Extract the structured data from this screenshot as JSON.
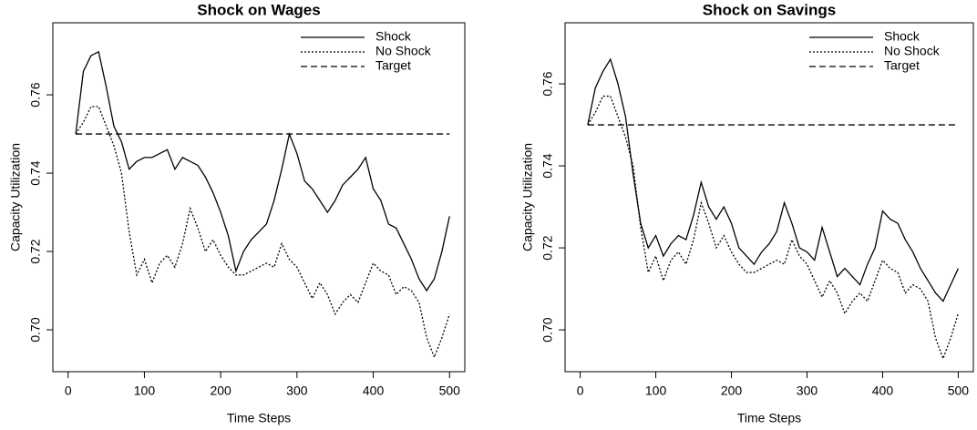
{
  "chart_data": [
    {
      "type": "line",
      "title": "Shock on Wages",
      "xlabel": "Time Steps",
      "ylabel": "Capacity Utilization",
      "x": [
        10,
        20,
        30,
        40,
        50,
        60,
        70,
        80,
        90,
        100,
        110,
        120,
        130,
        140,
        150,
        160,
        170,
        180,
        190,
        200,
        210,
        220,
        230,
        240,
        250,
        260,
        270,
        280,
        290,
        300,
        310,
        320,
        330,
        340,
        350,
        360,
        370,
        380,
        390,
        400,
        410,
        420,
        430,
        440,
        450,
        460,
        470,
        480,
        490,
        500
      ],
      "series": [
        {
          "name": "Shock",
          "color": "#000000",
          "linestyle": "solid",
          "values": [
            0.75,
            0.766,
            0.77,
            0.771,
            0.762,
            0.752,
            0.748,
            0.741,
            0.743,
            0.744,
            0.744,
            0.745,
            0.746,
            0.741,
            0.744,
            0.743,
            0.742,
            0.739,
            0.735,
            0.73,
            0.724,
            0.715,
            0.72,
            0.723,
            0.725,
            0.727,
            0.733,
            0.741,
            0.75,
            0.745,
            0.738,
            0.736,
            0.733,
            0.73,
            0.733,
            0.737,
            0.739,
            0.741,
            0.744,
            0.736,
            0.733,
            0.727,
            0.726,
            0.722,
            0.718,
            0.713,
            0.71,
            0.713,
            0.72,
            0.729
          ]
        },
        {
          "name": "No Shock",
          "color": "#000000",
          "linestyle": "dotted",
          "values": [
            0.75,
            0.753,
            0.757,
            0.757,
            0.752,
            0.747,
            0.74,
            0.725,
            0.714,
            0.718,
            0.712,
            0.717,
            0.719,
            0.716,
            0.722,
            0.731,
            0.726,
            0.72,
            0.723,
            0.719,
            0.716,
            0.714,
            0.714,
            0.715,
            0.716,
            0.717,
            0.716,
            0.722,
            0.718,
            0.716,
            0.712,
            0.708,
            0.712,
            0.709,
            0.704,
            0.707,
            0.709,
            0.707,
            0.712,
            0.717,
            0.715,
            0.714,
            0.709,
            0.711,
            0.71,
            0.707,
            0.698,
            0.693,
            0.698,
            0.704
          ]
        },
        {
          "name": "Target",
          "color": "#000000",
          "linestyle": "dashed",
          "values": [
            0.75,
            0.75,
            0.75,
            0.75,
            0.75,
            0.75,
            0.75,
            0.75,
            0.75,
            0.75,
            0.75,
            0.75,
            0.75,
            0.75,
            0.75,
            0.75,
            0.75,
            0.75,
            0.75,
            0.75,
            0.75,
            0.75,
            0.75,
            0.75,
            0.75,
            0.75,
            0.75,
            0.75,
            0.75,
            0.75,
            0.75,
            0.75,
            0.75,
            0.75,
            0.75,
            0.75,
            0.75,
            0.75,
            0.75,
            0.75,
            0.75,
            0.75,
            0.75,
            0.75,
            0.75,
            0.75,
            0.75,
            0.75,
            0.75,
            0.75
          ]
        }
      ],
      "xlim": [
        -20,
        520
      ],
      "xticks": [
        0,
        100,
        200,
        300,
        400,
        500
      ],
      "ylim": [
        0.6893,
        0.7784
      ],
      "yticks": [
        {
          "value": 0.7,
          "label": "0.70"
        },
        {
          "value": 0.72,
          "label": "0.72"
        },
        {
          "value": 0.74,
          "label": "0.74"
        },
        {
          "value": 0.76,
          "label": "0.76"
        }
      ],
      "legend": "top-right"
    },
    {
      "type": "line",
      "title": "Shock on Savings",
      "xlabel": "Time Steps",
      "ylabel": "Capacity Utilization",
      "x": [
        10,
        20,
        30,
        40,
        50,
        60,
        70,
        80,
        90,
        100,
        110,
        120,
        130,
        140,
        150,
        160,
        170,
        180,
        190,
        200,
        210,
        220,
        230,
        240,
        250,
        260,
        270,
        280,
        290,
        300,
        310,
        320,
        330,
        340,
        350,
        360,
        370,
        380,
        390,
        400,
        410,
        420,
        430,
        440,
        450,
        460,
        470,
        480,
        490,
        500
      ],
      "series": [
        {
          "name": "Shock",
          "color": "#000000",
          "linestyle": "solid",
          "values": [
            0.75,
            0.759,
            0.763,
            0.766,
            0.76,
            0.752,
            0.738,
            0.726,
            0.72,
            0.723,
            0.718,
            0.721,
            0.723,
            0.722,
            0.728,
            0.736,
            0.73,
            0.727,
            0.73,
            0.726,
            0.72,
            0.718,
            0.716,
            0.719,
            0.721,
            0.724,
            0.731,
            0.726,
            0.72,
            0.719,
            0.717,
            0.725,
            0.719,
            0.713,
            0.715,
            0.713,
            0.711,
            0.716,
            0.72,
            0.729,
            0.727,
            0.726,
            0.722,
            0.719,
            0.715,
            0.712,
            0.709,
            0.707,
            0.711,
            0.715
          ]
        },
        {
          "name": "No Shock",
          "color": "#000000",
          "linestyle": "dotted",
          "values": [
            0.75,
            0.753,
            0.757,
            0.757,
            0.752,
            0.747,
            0.74,
            0.725,
            0.714,
            0.718,
            0.712,
            0.717,
            0.719,
            0.716,
            0.722,
            0.731,
            0.726,
            0.72,
            0.723,
            0.719,
            0.716,
            0.714,
            0.714,
            0.715,
            0.716,
            0.717,
            0.716,
            0.722,
            0.718,
            0.716,
            0.712,
            0.708,
            0.712,
            0.709,
            0.704,
            0.707,
            0.709,
            0.707,
            0.712,
            0.717,
            0.715,
            0.714,
            0.709,
            0.711,
            0.71,
            0.707,
            0.698,
            0.693,
            0.698,
            0.704
          ]
        },
        {
          "name": "Target",
          "color": "#000000",
          "linestyle": "dashed",
          "values": [
            0.75,
            0.75,
            0.75,
            0.75,
            0.75,
            0.75,
            0.75,
            0.75,
            0.75,
            0.75,
            0.75,
            0.75,
            0.75,
            0.75,
            0.75,
            0.75,
            0.75,
            0.75,
            0.75,
            0.75,
            0.75,
            0.75,
            0.75,
            0.75,
            0.75,
            0.75,
            0.75,
            0.75,
            0.75,
            0.75,
            0.75,
            0.75,
            0.75,
            0.75,
            0.75,
            0.75,
            0.75,
            0.75,
            0.75,
            0.75,
            0.75,
            0.75,
            0.75,
            0.75,
            0.75,
            0.75,
            0.75,
            0.75,
            0.75,
            0.75
          ]
        }
      ],
      "xlim": [
        -20,
        520
      ],
      "xticks": [
        0,
        100,
        200,
        300,
        400,
        500
      ],
      "ylim": [
        0.6898,
        0.7749
      ],
      "yticks": [
        {
          "value": 0.7,
          "label": "0.70"
        },
        {
          "value": 0.72,
          "label": "0.72"
        },
        {
          "value": 0.74,
          "label": "0.74"
        },
        {
          "value": 0.76,
          "label": "0.76"
        }
      ],
      "legend": "top-right"
    }
  ]
}
